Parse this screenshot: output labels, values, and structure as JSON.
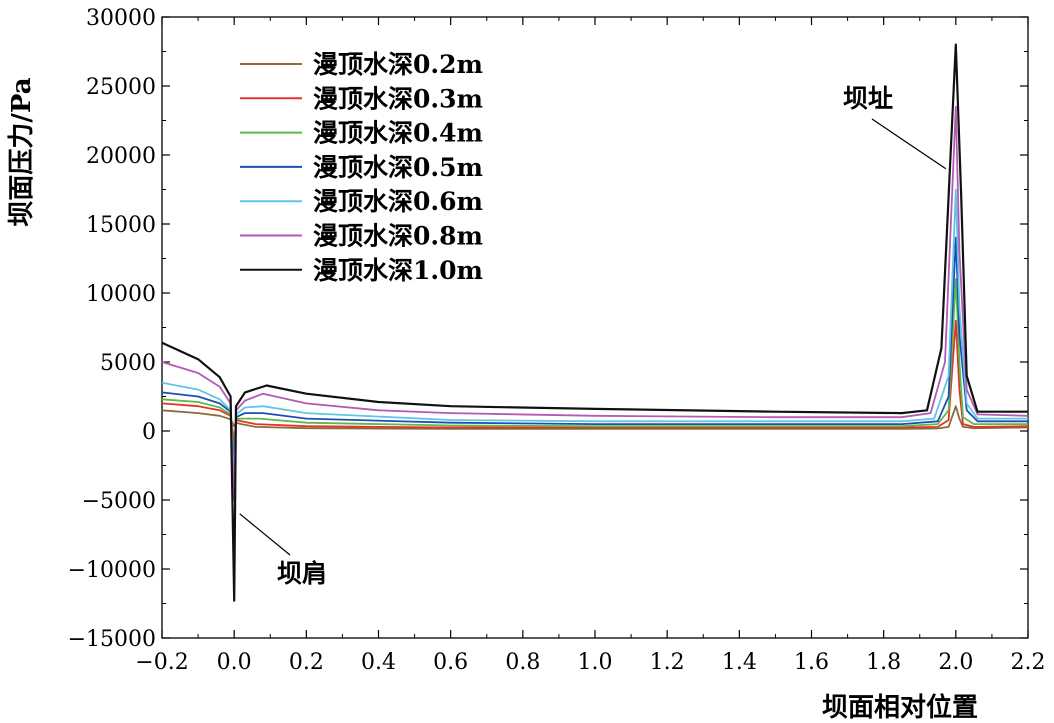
{
  "chart_data": {
    "type": "line",
    "xlabel": "坝面相对位置",
    "ylabel": "坝面压力/Pa",
    "xlim": [
      -0.2,
      2.2
    ],
    "ylim": [
      -15000,
      30000
    ],
    "xticks": [
      -0.2,
      0.0,
      0.2,
      0.4,
      0.6,
      0.8,
      1.0,
      1.2,
      1.4,
      1.6,
      1.8,
      2.0,
      2.2
    ],
    "xtick_labels": [
      "−0.2",
      "0.0",
      "0.2",
      "0.4",
      "0.6",
      "0.8",
      "1.0",
      "1.2",
      "1.4",
      "1.6",
      "1.8",
      "2.0",
      "2.2"
    ],
    "yticks": [
      -15000,
      -10000,
      -5000,
      0,
      5000,
      10000,
      15000,
      20000,
      25000,
      30000
    ],
    "ytick_labels": [
      "−15000",
      "−10000",
      "−5000",
      "0",
      "5000",
      "10000",
      "15000",
      "20000",
      "25000",
      "30000"
    ],
    "grid": false,
    "legend_position": "top-left",
    "annotations": [
      {
        "text": "坝址",
        "x": 2.0,
        "y": 19000
      },
      {
        "text": "坝肩",
        "x": 0.01,
        "y": -6000
      }
    ],
    "series": [
      {
        "name": "漫顶水深0.2m",
        "color": "#8b6a3e",
        "points": [
          [
            -0.2,
            1500
          ],
          [
            -0.1,
            1300
          ],
          [
            -0.04,
            1100
          ],
          [
            -0.01,
            850
          ],
          [
            0.0,
            350
          ],
          [
            0.005,
            600
          ],
          [
            0.02,
            500
          ],
          [
            0.06,
            300
          ],
          [
            0.2,
            200
          ],
          [
            0.6,
            150
          ],
          [
            1.0,
            150
          ],
          [
            1.5,
            150
          ],
          [
            1.85,
            150
          ],
          [
            1.95,
            180
          ],
          [
            1.98,
            300
          ],
          [
            2.0,
            1800
          ],
          [
            2.01,
            900
          ],
          [
            2.02,
            300
          ],
          [
            2.05,
            200
          ],
          [
            2.2,
            250
          ]
        ]
      },
      {
        "name": "漫顶水深0.3m",
        "color": "#e8312a",
        "points": [
          [
            -0.2,
            2000
          ],
          [
            -0.1,
            1800
          ],
          [
            -0.04,
            1500
          ],
          [
            -0.01,
            1100
          ],
          [
            0.0,
            -800
          ],
          [
            0.005,
            800
          ],
          [
            0.02,
            700
          ],
          [
            0.06,
            500
          ],
          [
            0.2,
            350
          ],
          [
            0.6,
            250
          ],
          [
            1.0,
            250
          ],
          [
            1.5,
            250
          ],
          [
            1.85,
            250
          ],
          [
            1.95,
            300
          ],
          [
            1.98,
            800
          ],
          [
            2.0,
            8000
          ],
          [
            2.01,
            3000
          ],
          [
            2.02,
            500
          ],
          [
            2.05,
            300
          ],
          [
            2.2,
            350
          ]
        ]
      },
      {
        "name": "漫顶水深0.4m",
        "color": "#5cba47",
        "points": [
          [
            -0.2,
            2300
          ],
          [
            -0.1,
            2100
          ],
          [
            -0.04,
            1700
          ],
          [
            -0.01,
            1200
          ],
          [
            0.0,
            -1500
          ],
          [
            0.005,
            900
          ],
          [
            0.03,
            900
          ],
          [
            0.07,
            900
          ],
          [
            0.2,
            600
          ],
          [
            0.6,
            400
          ],
          [
            1.0,
            350
          ],
          [
            1.5,
            350
          ],
          [
            1.85,
            350
          ],
          [
            1.95,
            500
          ],
          [
            1.98,
            1500
          ],
          [
            2.0,
            11000
          ],
          [
            2.01,
            5000
          ],
          [
            2.02,
            1000
          ],
          [
            2.05,
            500
          ],
          [
            2.2,
            500
          ]
        ]
      },
      {
        "name": "漫顶水深0.5m",
        "color": "#1d4fb0",
        "points": [
          [
            -0.2,
            2800
          ],
          [
            -0.1,
            2500
          ],
          [
            -0.04,
            2000
          ],
          [
            -0.01,
            1400
          ],
          [
            0.0,
            -2500
          ],
          [
            0.005,
            1000
          ],
          [
            0.03,
            1300
          ],
          [
            0.08,
            1300
          ],
          [
            0.2,
            900
          ],
          [
            0.6,
            600
          ],
          [
            1.0,
            500
          ],
          [
            1.5,
            500
          ],
          [
            1.85,
            500
          ],
          [
            1.95,
            700
          ],
          [
            1.98,
            2500
          ],
          [
            2.0,
            14000
          ],
          [
            2.01,
            7000
          ],
          [
            2.03,
            1500
          ],
          [
            2.06,
            700
          ],
          [
            2.2,
            700
          ]
        ]
      },
      {
        "name": "漫顶水深0.6m",
        "color": "#62c4e6",
        "points": [
          [
            -0.2,
            3500
          ],
          [
            -0.1,
            3000
          ],
          [
            -0.04,
            2300
          ],
          [
            -0.01,
            1500
          ],
          [
            0.0,
            -3500
          ],
          [
            0.005,
            1200
          ],
          [
            0.03,
            1700
          ],
          [
            0.08,
            1800
          ],
          [
            0.2,
            1300
          ],
          [
            0.6,
            800
          ],
          [
            1.0,
            700
          ],
          [
            1.5,
            700
          ],
          [
            1.85,
            700
          ],
          [
            1.94,
            900
          ],
          [
            1.98,
            4000
          ],
          [
            2.0,
            17500
          ],
          [
            2.01,
            9000
          ],
          [
            2.03,
            2000
          ],
          [
            2.06,
            900
          ],
          [
            2.2,
            900
          ]
        ]
      },
      {
        "name": "漫顶水深0.8m",
        "color": "#b25ab5",
        "points": [
          [
            -0.2,
            5000
          ],
          [
            -0.1,
            4200
          ],
          [
            -0.04,
            3200
          ],
          [
            -0.01,
            2000
          ],
          [
            0.0,
            -5000
          ],
          [
            0.005,
            1500
          ],
          [
            0.03,
            2200
          ],
          [
            0.08,
            2700
          ],
          [
            0.2,
            2000
          ],
          [
            0.4,
            1500
          ],
          [
            0.6,
            1300
          ],
          [
            1.0,
            1100
          ],
          [
            1.5,
            1000
          ],
          [
            1.85,
            1000
          ],
          [
            1.93,
            1300
          ],
          [
            1.97,
            5000
          ],
          [
            2.0,
            23500
          ],
          [
            2.01,
            13000
          ],
          [
            2.03,
            3000
          ],
          [
            2.06,
            1200
          ],
          [
            2.2,
            1100
          ]
        ]
      },
      {
        "name": "漫顶水深1.0m",
        "color": "#111111",
        "points": [
          [
            -0.2,
            6400
          ],
          [
            -0.1,
            5200
          ],
          [
            -0.04,
            3900
          ],
          [
            -0.01,
            2500
          ],
          [
            0.0,
            -12300
          ],
          [
            0.005,
            1800
          ],
          [
            0.03,
            2800
          ],
          [
            0.09,
            3300
          ],
          [
            0.2,
            2700
          ],
          [
            0.4,
            2100
          ],
          [
            0.6,
            1800
          ],
          [
            1.0,
            1600
          ],
          [
            1.5,
            1400
          ],
          [
            1.85,
            1300
          ],
          [
            1.92,
            1500
          ],
          [
            1.96,
            6000
          ],
          [
            2.0,
            28000
          ],
          [
            2.015,
            17000
          ],
          [
            2.03,
            4000
          ],
          [
            2.06,
            1400
          ],
          [
            2.2,
            1400
          ]
        ]
      }
    ]
  }
}
